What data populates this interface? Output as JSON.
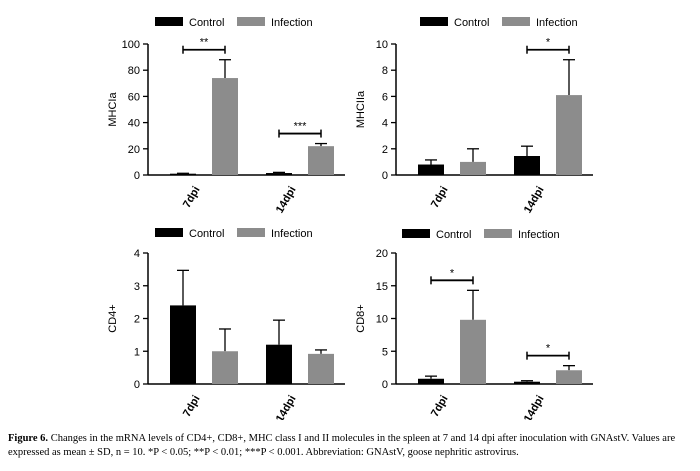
{
  "chart_data": [
    {
      "type": "bar",
      "ylabel": "MHCIa",
      "categories": [
        "7dpi",
        "14dpi"
      ],
      "ylim": [
        0,
        100
      ],
      "yticks": [
        0,
        20,
        40,
        60,
        80,
        100
      ],
      "tick_labels": [
        "0",
        "20",
        "40",
        "60",
        "80",
        "100"
      ],
      "series": [
        {
          "name": "Control",
          "color": "#000000",
          "values": [
            1,
            1.5
          ],
          "errors": [
            0.3,
            0.5
          ]
        },
        {
          "name": "Infection",
          "color": "#8c8c8c",
          "values": [
            74,
            22
          ],
          "errors": [
            14,
            2
          ]
        }
      ],
      "significance": [
        "**",
        "***"
      ],
      "legend": "top-left"
    },
    {
      "type": "bar",
      "ylabel": "MHCIIa",
      "categories": [
        "7dpi",
        "14dpi"
      ],
      "ylim": [
        0,
        10
      ],
      "yticks": [
        0,
        2,
        4,
        6,
        8,
        10
      ],
      "tick_labels": [
        "0",
        "2",
        "4",
        "6",
        "8",
        "10"
      ],
      "series": [
        {
          "name": "Control",
          "color": "#000000",
          "values": [
            0.8,
            1.45
          ],
          "errors": [
            0.35,
            0.75
          ]
        },
        {
          "name": "Infection",
          "color": "#8c8c8c",
          "values": [
            1.0,
            6.1
          ],
          "errors": [
            1.0,
            2.7
          ]
        }
      ],
      "significance": [
        "",
        "*"
      ],
      "legend": "top-left"
    },
    {
      "type": "bar",
      "ylabel": "CD4+",
      "categories": [
        "7dpi",
        "14dpi"
      ],
      "ylim": [
        0,
        4
      ],
      "yticks": [
        0,
        1,
        2,
        3,
        4
      ],
      "tick_labels": [
        "0",
        "1",
        "2",
        "3",
        "4"
      ],
      "series": [
        {
          "name": "Control",
          "color": "#000000",
          "values": [
            2.4,
            1.2
          ],
          "errors": [
            1.07,
            0.75
          ]
        },
        {
          "name": "Infection",
          "color": "#8c8c8c",
          "values": [
            1.0,
            0.92
          ],
          "errors": [
            0.68,
            0.12
          ]
        }
      ],
      "significance": [
        "",
        ""
      ],
      "legend": "top-left"
    },
    {
      "type": "bar",
      "ylabel": "CD8+",
      "categories": [
        "7dpi",
        "14dpi"
      ],
      "ylim": [
        0,
        20
      ],
      "yticks": [
        0,
        5,
        10,
        15,
        20
      ],
      "tick_labels": [
        "0",
        "5",
        "10",
        "15",
        "20"
      ],
      "series": [
        {
          "name": "Control",
          "color": "#000000",
          "values": [
            0.8,
            0.35
          ],
          "errors": [
            0.4,
            0.15
          ]
        },
        {
          "name": "Infection",
          "color": "#8c8c8c",
          "values": [
            9.8,
            2.1
          ],
          "errors": [
            4.5,
            0.7
          ]
        }
      ],
      "significance": [
        "*",
        "*"
      ],
      "legend": "top-left"
    }
  ],
  "caption": {
    "label": "Figure 6.",
    "text": "Changes in the mRNA levels of CD4+, CD8+, MHC class I and II molecules in the spleen at 7 and 14 dpi after inoculation with GNAstV. Values are expressed as mean ± SD, n = 10. *P < 0.05; **P < 0.01; ***P < 0.001. Abbreviation: GNAstV, goose nephritic astrovirus."
  }
}
